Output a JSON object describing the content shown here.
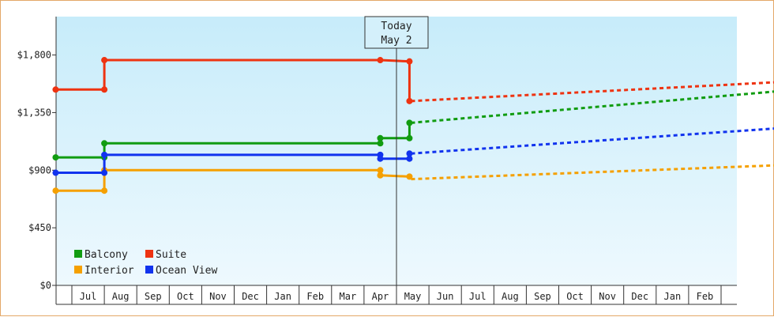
{
  "chart_data": {
    "type": "line",
    "title": "",
    "xlabel": "",
    "ylabel": "",
    "ylim": [
      0,
      2100
    ],
    "y_ticks": [
      0,
      450,
      900,
      1350,
      1800
    ],
    "y_tick_labels": [
      "$0",
      "$450",
      "$900",
      "$1,350",
      "$1,800"
    ],
    "x_months": [
      "Jul",
      "Aug",
      "Sep",
      "Oct",
      "Nov",
      "Dec",
      "Jan",
      "Feb",
      "Mar",
      "Apr",
      "May",
      "Jun",
      "Jul",
      "Aug",
      "Sep",
      "Oct",
      "Nov",
      "Dec",
      "Jan",
      "Feb"
    ],
    "x_start_month_index": 0,
    "today_month_index": 10.0,
    "annotation": {
      "line1": "Today",
      "line2": "May 2"
    },
    "legend": {
      "position": "bottom-left"
    },
    "series": [
      {
        "name": "Balcony",
        "color": "#119c11",
        "history": [
          [
            -0.5,
            1000
          ],
          [
            1.0,
            1000
          ],
          [
            1.0,
            1110
          ],
          [
            9.5,
            1110
          ],
          [
            9.5,
            1150
          ],
          [
            10.4,
            1150
          ],
          [
            10.4,
            1270
          ]
        ],
        "forecast": [
          [
            10.45,
            1270
          ],
          [
            21.9,
            1520
          ]
        ]
      },
      {
        "name": "Suite",
        "color": "#ee3311",
        "history": [
          [
            -0.5,
            1530
          ],
          [
            1.0,
            1530
          ],
          [
            1.0,
            1760
          ],
          [
            9.5,
            1760
          ],
          [
            10.4,
            1750
          ],
          [
            10.4,
            1440
          ]
        ],
        "forecast": [
          [
            10.45,
            1440
          ],
          [
            21.9,
            1590
          ]
        ]
      },
      {
        "name": "Interior",
        "color": "#f5a000",
        "history": [
          [
            -0.5,
            740
          ],
          [
            1.0,
            740
          ],
          [
            1.0,
            900
          ],
          [
            9.5,
            900
          ],
          [
            9.5,
            860
          ],
          [
            10.4,
            850
          ]
        ],
        "forecast": [
          [
            10.45,
            830
          ],
          [
            21.9,
            940
          ]
        ]
      },
      {
        "name": "Ocean View",
        "color": "#1133ee",
        "history": [
          [
            -0.5,
            880
          ],
          [
            1.0,
            880
          ],
          [
            1.0,
            1020
          ],
          [
            9.5,
            1020
          ],
          [
            9.5,
            990
          ],
          [
            10.4,
            990
          ],
          [
            10.4,
            1030
          ]
        ],
        "forecast": [
          [
            10.45,
            1030
          ],
          [
            21.9,
            1230
          ]
        ]
      }
    ]
  }
}
